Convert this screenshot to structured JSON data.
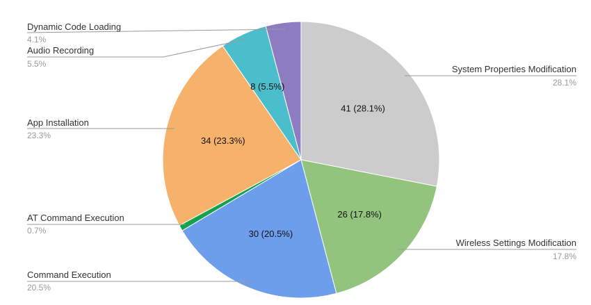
{
  "chart_data": {
    "type": "pie",
    "title": "",
    "start_angle_deg": 0,
    "direction": "clockwise",
    "slices": [
      {
        "name": "System Properties Modification",
        "value": 41,
        "percent": "28.1%",
        "slice_label": "41 (28.1%)",
        "color": "#cccccc"
      },
      {
        "name": "Wireless Settings Modification",
        "value": 26,
        "percent": "17.8%",
        "slice_label": "26 (17.8%)",
        "color": "#93c47d"
      },
      {
        "name": "Command Execution",
        "value": 30,
        "percent": "20.5%",
        "slice_label": "30 (20.5%)",
        "color": "#6d9eeb"
      },
      {
        "name": "AT Command Execution",
        "value": 1,
        "percent": "0.7%",
        "slice_label": "",
        "color": "#16a152"
      },
      {
        "name": "App Installation",
        "value": 34,
        "percent": "23.3%",
        "slice_label": "34 (23.3%)",
        "color": "#f6b26b"
      },
      {
        "name": "Audio Recording",
        "value": 8,
        "percent": "5.5%",
        "slice_label": "8 (5.5%)",
        "color": "#4bbecb"
      },
      {
        "name": "Dynamic Code Loading",
        "value": 6,
        "percent": "4.1%",
        "slice_label": "",
        "color": "#8e7cc3"
      }
    ]
  }
}
